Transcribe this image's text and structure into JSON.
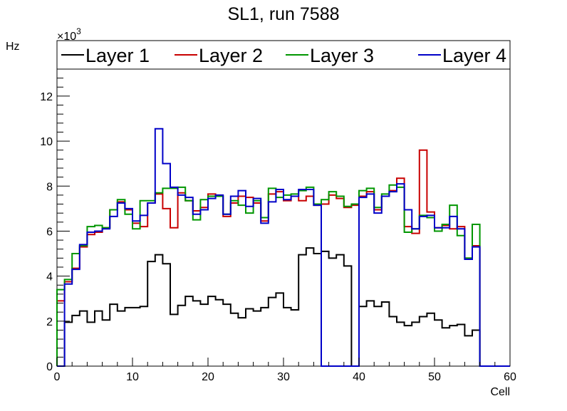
{
  "chart_data": {
    "type": "histogram-step",
    "title": "SL1, run 7588",
    "xlabel": "Cell",
    "ylabel": "Hz",
    "y_multiplier_label": "×10",
    "y_multiplier_exponent": "3",
    "xlim": [
      0,
      60
    ],
    "ylim": [
      0,
      13.2
    ],
    "y_unit_scale": 1000,
    "xticks": [
      0,
      10,
      20,
      30,
      40,
      50,
      60
    ],
    "yticks": [
      0,
      2,
      4,
      6,
      8,
      10,
      12
    ],
    "bin_edges": [
      0,
      1,
      2,
      3,
      4,
      5,
      6,
      7,
      8,
      9,
      10,
      11,
      12,
      13,
      14,
      15,
      16,
      17,
      18,
      19,
      20,
      21,
      22,
      23,
      24,
      25,
      26,
      27,
      28,
      29,
      30,
      31,
      32,
      33,
      34,
      35,
      36,
      37,
      38,
      39,
      40,
      41,
      42,
      43,
      44,
      45,
      46,
      47,
      48,
      49,
      50,
      51,
      52,
      53,
      54,
      55,
      56,
      57,
      58,
      59,
      60
    ],
    "legend_position": "top",
    "series": [
      {
        "name": "Layer 1",
        "color": "#000000",
        "values": [
          0,
          1.95,
          2.25,
          2.45,
          1.95,
          2.45,
          2.05,
          2.75,
          2.45,
          2.6,
          2.6,
          2.65,
          4.65,
          4.95,
          4.55,
          2.3,
          2.7,
          3.1,
          2.9,
          2.75,
          3.1,
          2.95,
          2.75,
          2.35,
          2.15,
          2.55,
          2.45,
          2.6,
          3.05,
          3.25,
          2.6,
          2.5,
          4.95,
          5.25,
          5.0,
          5.1,
          4.8,
          4.95,
          4.45,
          0,
          2.65,
          2.9,
          2.65,
          2.85,
          2.2,
          1.95,
          1.8,
          1.95,
          2.2,
          2.35,
          2.05,
          1.7,
          1.8,
          1.85,
          1.35,
          1.6,
          0,
          0,
          0,
          0
        ]
      },
      {
        "name": "Layer 2",
        "color": "#c80000",
        "values": [
          2.9,
          3.75,
          4.35,
          5.3,
          5.85,
          5.95,
          6.15,
          6.95,
          7.3,
          6.95,
          6.35,
          6.2,
          7.25,
          7.65,
          7.0,
          6.15,
          7.7,
          7.35,
          6.9,
          7.05,
          7.65,
          7.55,
          6.65,
          7.25,
          7.55,
          7.5,
          7.25,
          6.45,
          7.65,
          7.75,
          7.35,
          7.55,
          7.35,
          7.55,
          7.15,
          7.2,
          7.6,
          7.45,
          7.05,
          7.15,
          7.55,
          7.75,
          6.95,
          7.55,
          7.8,
          8.35,
          6.2,
          5.9,
          9.6,
          6.85,
          6.15,
          6.25,
          6.1,
          6.2,
          4.8,
          5.35,
          0,
          0,
          0,
          0
        ]
      },
      {
        "name": "Layer 3",
        "color": "#009600",
        "values": [
          3.4,
          3.85,
          5.0,
          5.35,
          6.2,
          6.25,
          6.15,
          6.95,
          7.4,
          6.75,
          6.1,
          7.35,
          7.35,
          7.7,
          7.9,
          7.9,
          7.95,
          7.35,
          6.5,
          7.4,
          7.55,
          7.55,
          6.75,
          7.35,
          7.15,
          6.8,
          7.35,
          6.6,
          7.9,
          7.5,
          7.6,
          7.65,
          7.8,
          7.95,
          7.2,
          7.4,
          7.75,
          7.55,
          7.1,
          7.2,
          7.8,
          7.9,
          7.05,
          7.65,
          8.05,
          7.95,
          5.95,
          6.1,
          6.7,
          6.6,
          6.0,
          6.3,
          7.15,
          5.8,
          4.8,
          6.3,
          0,
          0,
          0,
          0
        ]
      },
      {
        "name": "Layer 4",
        "color": "#0000c8",
        "values": [
          0,
          3.65,
          4.3,
          5.4,
          5.95,
          6.0,
          6.1,
          6.65,
          7.25,
          7.0,
          6.45,
          6.7,
          7.25,
          10.55,
          9.0,
          7.95,
          7.6,
          7.5,
          6.75,
          6.95,
          7.45,
          7.6,
          6.75,
          7.55,
          7.8,
          7.1,
          7.45,
          6.35,
          7.3,
          7.85,
          7.4,
          7.55,
          7.85,
          7.85,
          7.15,
          0,
          0,
          0,
          0,
          0,
          7.5,
          7.65,
          6.8,
          7.55,
          7.75,
          8.1,
          6.95,
          6.1,
          6.65,
          6.7,
          6.15,
          6.15,
          6.65,
          6.1,
          4.75,
          5.3,
          0,
          0,
          0,
          0
        ]
      }
    ]
  }
}
